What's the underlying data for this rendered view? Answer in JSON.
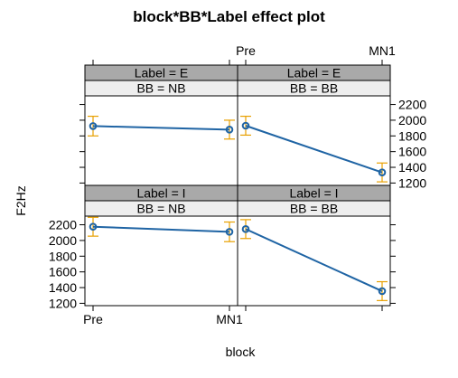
{
  "chart_data": {
    "type": "line",
    "title": "block*BB*Label effect plot",
    "xlabel": "block",
    "ylabel": "F2Hz",
    "x_categories": [
      "Pre",
      "MN1"
    ],
    "yticks": [
      1200,
      1400,
      1600,
      1800,
      2000,
      2200
    ],
    "ylim": [
      1170,
      2310
    ],
    "grid": false,
    "colors": {
      "line": "#1f64a4",
      "error_bar": "#e8a000",
      "strip_factor1": "#a9a9a9",
      "strip_factor2": "#eeeeee",
      "box": "#000000"
    },
    "panels": [
      {
        "strips": [
          "Label = E",
          "BB = NB"
        ],
        "values": [
          1925,
          1880
        ],
        "lower": [
          1800,
          1760
        ],
        "upper": [
          2050,
          2000
        ]
      },
      {
        "strips": [
          "Label = E",
          "BB = BB"
        ],
        "values": [
          1930,
          1335
        ],
        "lower": [
          1810,
          1215
        ],
        "upper": [
          2050,
          1455
        ]
      },
      {
        "strips": [
          "Label = I",
          "BB = NB"
        ],
        "values": [
          2175,
          2110
        ],
        "lower": [
          2055,
          1985
        ],
        "upper": [
          2295,
          2235
        ]
      },
      {
        "strips": [
          "Label = I",
          "BB = BB"
        ],
        "values": [
          2145,
          1355
        ],
        "lower": [
          2025,
          1235
        ],
        "upper": [
          2265,
          1475
        ]
      }
    ]
  }
}
